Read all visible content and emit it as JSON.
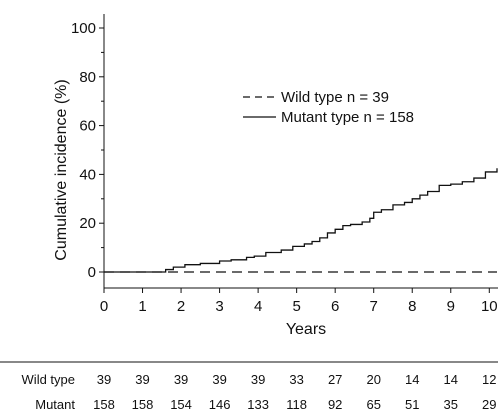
{
  "chart_data": {
    "type": "line",
    "title": "",
    "xlabel": "Years",
    "ylabel": "Cumulative incidence (%)",
    "xlim": [
      0,
      10
    ],
    "ylim": [
      0,
      100
    ],
    "x_ticks": [
      0,
      1,
      2,
      3,
      4,
      5,
      6,
      7,
      8,
      9,
      10
    ],
    "y_ticks": [
      0,
      20,
      40,
      60,
      80,
      100
    ],
    "grid": false,
    "legend_position": "top-center",
    "series": [
      {
        "name": "Wild type n = 39",
        "style": "dashed",
        "color": "#111111",
        "x": [
          0,
          1.5,
          3.0,
          3.0,
          10.2
        ],
        "y": [
          0,
          0,
          0,
          0,
          0
        ]
      },
      {
        "name": "Mutant type n = 158",
        "style": "solid",
        "color": "#111111",
        "x": [
          0,
          1.5,
          1.6,
          1.8,
          2.1,
          2.5,
          3.0,
          3.3,
          3.7,
          3.9,
          4.2,
          4.6,
          4.9,
          5.2,
          5.4,
          5.6,
          5.8,
          6.0,
          6.2,
          6.4,
          6.7,
          6.9,
          7.0,
          7.2,
          7.5,
          7.8,
          8.0,
          8.2,
          8.4,
          8.7,
          9.0,
          9.3,
          9.6,
          9.9,
          10.2
        ],
        "y": [
          0,
          0,
          1.0,
          2.0,
          3.0,
          3.5,
          4.5,
          5.0,
          6.0,
          6.5,
          8.0,
          9.0,
          10.5,
          11.5,
          12.5,
          14.0,
          16.0,
          17.5,
          19.0,
          19.5,
          20.5,
          22.0,
          24.5,
          25.5,
          27.5,
          28.5,
          30.0,
          31.5,
          33.0,
          35.5,
          36.0,
          37.0,
          38.5,
          41.0,
          42.5
        ]
      }
    ],
    "at_risk_table": {
      "rows": [
        {
          "label": "Wild type",
          "values": [
            "39",
            "39",
            "39",
            "39",
            "39",
            "33",
            "27",
            "20",
            "14",
            "14",
            "12"
          ]
        },
        {
          "label": "Mutant",
          "values": [
            "158",
            "158",
            "154",
            "146",
            "133",
            "118",
            "92",
            "65",
            "51",
            "35",
            "29"
          ]
        }
      ]
    }
  }
}
